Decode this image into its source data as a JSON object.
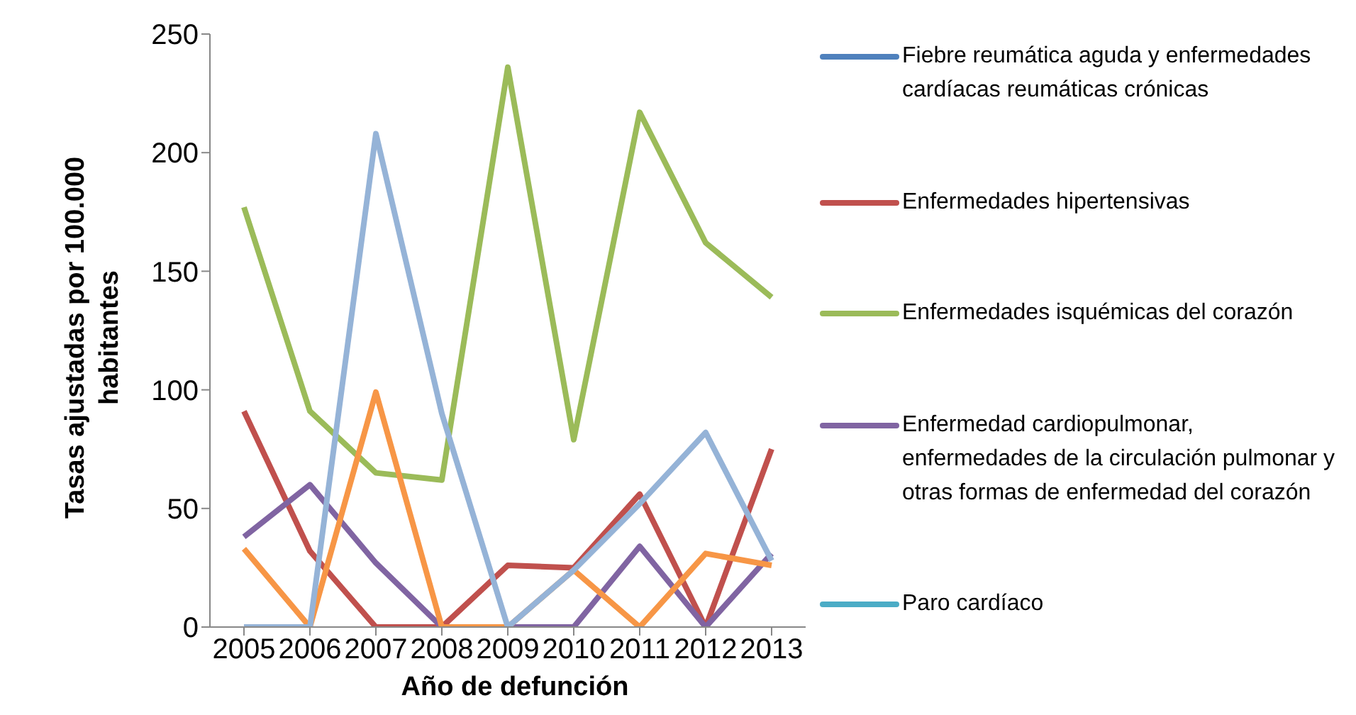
{
  "chart_data": {
    "type": "line",
    "xlabel": "Año de defunción",
    "ylabel": "Tasas ajustadas por 100.000 habitantes",
    "categories": [
      "2005",
      "2006",
      "2007",
      "2008",
      "2009",
      "2010",
      "2011",
      "2012",
      "2013"
    ],
    "ylim": [
      0,
      250
    ],
    "yticks": [
      0,
      50,
      100,
      150,
      200,
      250
    ],
    "grid": false,
    "legend": "right",
    "marker": "none",
    "line_style": "solid",
    "series": [
      {
        "name": "Fiebre reumática aguda y enfermedades cardíacas reumáticas crónicas",
        "color": "#4f81bd",
        "values": [
          null,
          null,
          null,
          null,
          null,
          null,
          null,
          null,
          null
        ]
      },
      {
        "name": "Enfermedades hipertensivas",
        "color": "#c0504d",
        "values": [
          91,
          32,
          0,
          0,
          26,
          25,
          56,
          0,
          75
        ]
      },
      {
        "name": "Enfermedades isquémicas del corazón",
        "color": "#9bbb59",
        "values": [
          177,
          91,
          65,
          62,
          236,
          79,
          217,
          162,
          139
        ]
      },
      {
        "name": "Enfermedad cardiopulmonar, enfermedades de la circulación pulmonar y otras formas de enfermedad del corazón",
        "color": "#8064a2",
        "values": [
          38,
          60,
          27,
          0,
          0,
          0,
          34,
          0,
          31
        ]
      },
      {
        "name": "Paro cardíaco",
        "color": "#4bacc6",
        "values": [
          null,
          null,
          null,
          null,
          null,
          null,
          null,
          null,
          null
        ]
      },
      {
        "color": "#f79646",
        "values": [
          33,
          0,
          99,
          0,
          0,
          24,
          0,
          31,
          26
        ]
      },
      {
        "color": "#95b3d7",
        "values": [
          0,
          0,
          208,
          90,
          0,
          24,
          52,
          82,
          28
        ]
      }
    ]
  }
}
